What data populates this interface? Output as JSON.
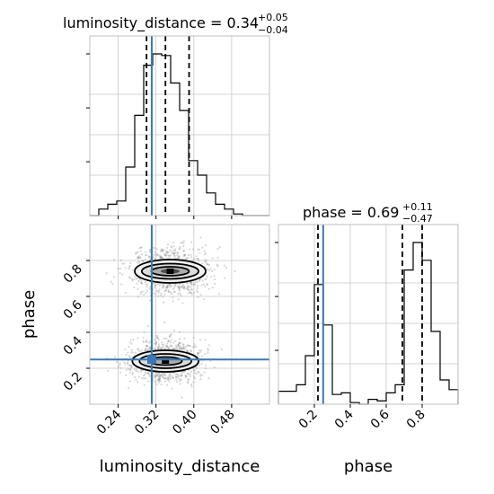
{
  "chart_data": [
    {
      "type": "histogram",
      "panel": "luminosity_distance marginal",
      "title": {
        "text": "luminosity_distance = 0.34",
        "sup": "+0.05",
        "sub": "−0.04"
      },
      "x": {
        "label": "",
        "range": [
          0.18,
          0.56
        ],
        "ticks": [
          0.24,
          0.32,
          0.4,
          0.48
        ]
      },
      "bins": {
        "edges_start": 0.18,
        "width": 0.019,
        "counts": [
          0,
          0.04,
          0.07,
          0.09,
          0.3,
          0.62,
          0.93,
          1.0,
          0.99,
          0.82,
          0.65,
          0.34,
          0.25,
          0.14,
          0.07,
          0.04,
          0.01,
          0,
          0,
          0
        ]
      },
      "quantiles": [
        0.3,
        0.34,
        0.39
      ],
      "truth": 0.311,
      "grid": true,
      "line_color": "#000000",
      "truth_color": "#3b78b5"
    },
    {
      "type": "histogram",
      "panel": "phase marginal",
      "title": {
        "text": "phase = 0.69",
        "sup": "+0.11",
        "sub": "−0.47"
      },
      "x": {
        "label": "phase",
        "range": [
          0.0,
          1.0
        ],
        "ticks": [
          0.2,
          0.4,
          0.6,
          0.8
        ]
      },
      "bins": {
        "edges_start": 0.0,
        "width": 0.05,
        "counts": [
          0.08,
          0.08,
          0.12,
          0.3,
          0.74,
          0.49,
          0.06,
          0.07,
          0.01,
          0.0,
          0.03,
          0.02,
          0.07,
          0.12,
          0.83,
          1.0,
          0.89,
          0.45,
          0.15,
          0.09
        ]
      },
      "quantiles": [
        0.22,
        0.69,
        0.8
      ],
      "truth": 0.249,
      "grid": true,
      "line_color": "#000000",
      "truth_color": "#3b78b5"
    },
    {
      "type": "contour",
      "panel": "luminosity_distance vs phase",
      "x": {
        "label": "luminosity_distance",
        "range": [
          0.18,
          0.56
        ],
        "ticks": [
          0.24,
          0.32,
          0.4,
          0.48
        ]
      },
      "y": {
        "label": "phase",
        "range": [
          0.0,
          1.0
        ],
        "ticks": [
          0.2,
          0.4,
          0.6,
          0.8
        ]
      },
      "modes": [
        {
          "center": [
            0.35,
            0.74
          ],
          "levels": [
            {
              "rx": 0.075,
              "ry": 0.13
            },
            {
              "rx": 0.06,
              "ry": 0.085
            },
            {
              "rx": 0.04,
              "ry": 0.05
            },
            {
              "rx": 0.02,
              "ry": 0.025
            }
          ]
        },
        {
          "center": [
            0.34,
            0.24
          ],
          "levels": [
            {
              "rx": 0.07,
              "ry": 0.12
            },
            {
              "rx": 0.055,
              "ry": 0.08
            },
            {
              "rx": 0.035,
              "ry": 0.045
            }
          ]
        }
      ],
      "truth": [
        0.311,
        0.249
      ],
      "grid": true,
      "point_color": "#808080",
      "truth_color": "#3b78b5"
    }
  ]
}
